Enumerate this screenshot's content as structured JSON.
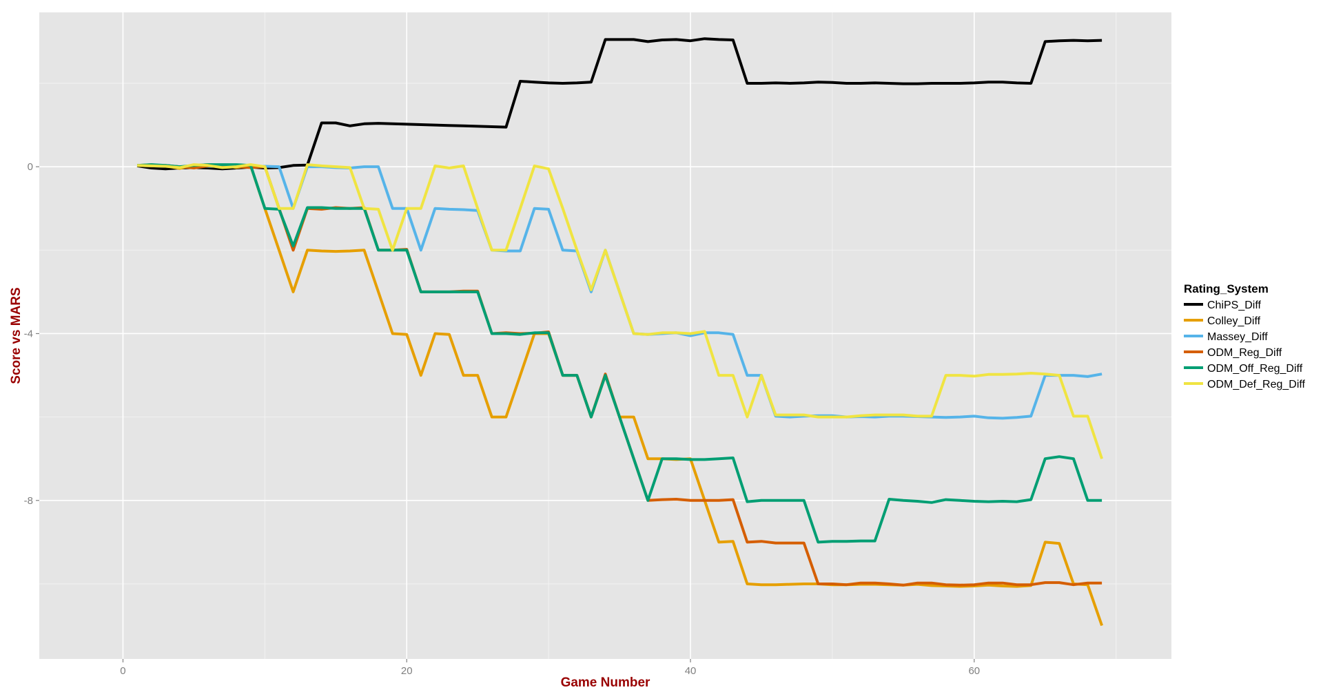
{
  "chart_data": {
    "type": "line",
    "title": "",
    "xlabel": "Game Number",
    "ylabel": "Score vs MARS",
    "xlim": [
      -5.9,
      73.9
    ],
    "ylim": [
      -11.8,
      3.7
    ],
    "xticks": [
      0,
      20,
      40,
      60
    ],
    "yticks": [
      0,
      -4,
      -8
    ],
    "ytick_labels": [
      "0",
      "-4",
      "-8"
    ],
    "xtick_labels": [
      "0",
      "20",
      "40",
      "60"
    ],
    "grid": true,
    "panel_background": "#e5e5e5",
    "legend": {
      "title": "Rating_System",
      "placement": "right"
    },
    "x": [
      1,
      2,
      3,
      4,
      5,
      6,
      7,
      8,
      9,
      10,
      11,
      12,
      13,
      14,
      15,
      16,
      17,
      18,
      19,
      20,
      21,
      22,
      23,
      24,
      25,
      26,
      27,
      28,
      29,
      30,
      31,
      32,
      33,
      34,
      35,
      36,
      37,
      38,
      39,
      40,
      41,
      42,
      43,
      44,
      45,
      46,
      47,
      48,
      49,
      50,
      51,
      52,
      53,
      54,
      55,
      56,
      57,
      58,
      59,
      60,
      61,
      62,
      63,
      64,
      65,
      66,
      67,
      68,
      69
    ],
    "series": [
      {
        "name": "ChiPS_Diff",
        "color": "#000000",
        "values": [
          0.02,
          -0.03,
          -0.05,
          -0.03,
          -0.02,
          -0.03,
          -0.05,
          -0.03,
          -0.01,
          -0.03,
          -0.02,
          0.03,
          0.04,
          1.05,
          1.05,
          0.98,
          1.03,
          1.04,
          1.03,
          1.02,
          1.01,
          1.0,
          0.99,
          0.98,
          0.97,
          0.96,
          0.95,
          2.05,
          2.03,
          2.01,
          2.0,
          2.01,
          2.03,
          3.05,
          3.05,
          3.05,
          3.0,
          3.04,
          3.05,
          3.02,
          3.07,
          3.05,
          3.04,
          2.0,
          2.0,
          2.01,
          2.0,
          2.01,
          2.03,
          2.02,
          2.0,
          2.0,
          2.01,
          2.0,
          1.99,
          1.99,
          2.0,
          2.0,
          2.0,
          2.01,
          2.03,
          2.03,
          2.01,
          2.0,
          3.0,
          3.02,
          3.03,
          3.02,
          3.03
        ]
      },
      {
        "name": "Colley_Diff",
        "color": "#e69f00",
        "values": [
          0.03,
          0.05,
          0.02,
          -0.04,
          0.03,
          0.05,
          0.04,
          -0.02,
          0.02,
          -1.0,
          -2.0,
          -3.0,
          -2.0,
          -2.02,
          -2.03,
          -2.02,
          -2.0,
          -3.0,
          -4.0,
          -4.02,
          -5.0,
          -4.0,
          -4.02,
          -5.0,
          -5.0,
          -6.0,
          -6.0,
          -5.0,
          -4.0,
          -4.0,
          -5.0,
          -5.0,
          -6.0,
          -5.0,
          -6.0,
          -6.0,
          -7.0,
          -7.0,
          -7.02,
          -7.0,
          -8.0,
          -9.0,
          -8.98,
          -10.0,
          -10.02,
          -10.02,
          -10.01,
          -10.0,
          -10.0,
          -10.02,
          -10.02,
          -10.01,
          -10.01,
          -10.02,
          -10.03,
          -10.01,
          -10.04,
          -10.05,
          -10.06,
          -10.05,
          -10.03,
          -10.05,
          -10.06,
          -10.04,
          -9.0,
          -9.03,
          -10.0,
          -10.02,
          -11.0
        ]
      },
      {
        "name": "Massey_Diff",
        "color": "#56b4e9",
        "values": [
          0.03,
          0.02,
          0.01,
          0.0,
          0.0,
          0.01,
          0.01,
          0.0,
          0.0,
          0.01,
          0.0,
          -1.0,
          0.0,
          0.0,
          -0.02,
          -0.03,
          0.0,
          0.0,
          -1.0,
          -1.0,
          -2.0,
          -1.0,
          -1.02,
          -1.03,
          -1.05,
          -2.0,
          -2.02,
          -2.02,
          -1.0,
          -1.02,
          -2.0,
          -2.02,
          -3.0,
          -2.0,
          -3.0,
          -4.0,
          -4.02,
          -4.0,
          -3.98,
          -4.05,
          -3.98,
          -3.98,
          -4.02,
          -5.0,
          -5.0,
          -5.98,
          -6.0,
          -5.98,
          -5.97,
          -5.97,
          -6.0,
          -5.99,
          -6.0,
          -5.98,
          -5.98,
          -5.99,
          -6.0,
          -6.01,
          -6.0,
          -5.98,
          -6.02,
          -6.03,
          -6.01,
          -5.98,
          -5.0,
          -5.0,
          -5.0,
          -5.03,
          -4.97
        ]
      },
      {
        "name": "ODM_Reg_Diff",
        "color": "#d55e00",
        "values": [
          0.03,
          0.02,
          0.03,
          0.0,
          -0.03,
          0.02,
          0.03,
          0.0,
          -0.02,
          0.0,
          -1.0,
          -2.0,
          -1.0,
          -1.02,
          -0.98,
          -1.0,
          -0.98,
          -2.0,
          -2.0,
          -1.98,
          -3.0,
          -3.0,
          -3.0,
          -2.98,
          -2.98,
          -4.0,
          -3.98,
          -4.0,
          -3.99,
          -3.96,
          -5.0,
          -5.0,
          -6.0,
          -4.97,
          -6.0,
          -7.0,
          -8.0,
          -7.98,
          -7.97,
          -8.0,
          -8.0,
          -8.0,
          -7.98,
          -9.0,
          -8.98,
          -9.02,
          -9.02,
          -9.02,
          -10.0,
          -10.0,
          -10.02,
          -9.98,
          -9.98,
          -10.0,
          -10.03,
          -9.98,
          -9.98,
          -10.02,
          -10.03,
          -10.02,
          -9.98,
          -9.98,
          -10.02,
          -10.02,
          -9.97,
          -9.97,
          -10.02,
          -9.98,
          -9.98
        ]
      },
      {
        "name": "ODM_Off_Reg_Diff",
        "color": "#009e73",
        "values": [
          0.03,
          0.05,
          0.03,
          0.0,
          0.03,
          0.05,
          0.05,
          0.05,
          0.03,
          -1.0,
          -1.02,
          -1.9,
          -0.98,
          -0.98,
          -1.0,
          -1.0,
          -1.0,
          -2.0,
          -2.0,
          -2.0,
          -3.0,
          -3.0,
          -3.0,
          -3.0,
          -3.0,
          -4.0,
          -4.0,
          -4.02,
          -3.98,
          -3.98,
          -5.0,
          -5.0,
          -6.0,
          -5.0,
          -6.0,
          -7.0,
          -8.0,
          -7.0,
          -7.0,
          -7.02,
          -7.02,
          -7.0,
          -6.98,
          -8.03,
          -8.0,
          -8.0,
          -8.0,
          -8.0,
          -9.0,
          -8.98,
          -8.98,
          -8.97,
          -8.97,
          -7.97,
          -8.0,
          -8.02,
          -8.05,
          -7.98,
          -8.0,
          -8.02,
          -8.03,
          -8.02,
          -8.03,
          -7.98,
          -7.0,
          -6.95,
          -7.0,
          -8.0,
          -8.0
        ]
      },
      {
        "name": "ODM_Def_Reg_Diff",
        "color": "#f0e442",
        "values": [
          0.03,
          0.02,
          0.01,
          -0.02,
          0.05,
          0.03,
          -0.02,
          0.0,
          0.05,
          0.0,
          -1.0,
          -1.0,
          0.05,
          0.02,
          0.0,
          -0.02,
          -1.0,
          -1.02,
          -2.0,
          -1.0,
          -1.0,
          0.02,
          -0.03,
          0.02,
          -1.0,
          -2.0,
          -2.0,
          -1.0,
          0.02,
          -0.05,
          -1.0,
          -2.0,
          -2.95,
          -2.0,
          -3.0,
          -4.0,
          -4.02,
          -3.98,
          -3.98,
          -4.0,
          -3.95,
          -5.0,
          -5.0,
          -6.0,
          -5.0,
          -5.95,
          -5.95,
          -5.95,
          -6.0,
          -6.0,
          -6.0,
          -5.97,
          -5.95,
          -5.95,
          -5.95,
          -5.98,
          -5.98,
          -5.0,
          -5.0,
          -5.02,
          -4.98,
          -4.98,
          -4.97,
          -4.95,
          -4.97,
          -5.0,
          -5.98,
          -5.98,
          -7.0
        ]
      }
    ]
  }
}
